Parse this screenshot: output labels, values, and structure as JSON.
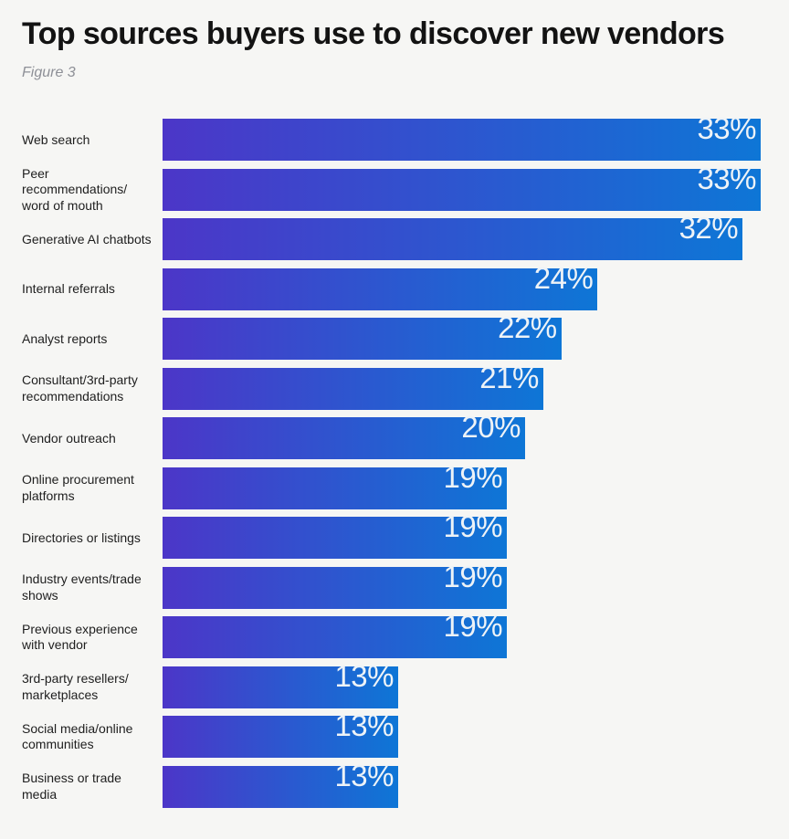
{
  "page": {
    "background_color": "#f6f6f4"
  },
  "header": {
    "title": "Top sources buyers use to discover new vendors",
    "figure_label": "Figure 3"
  },
  "chart_data": {
    "type": "bar",
    "orientation": "horizontal",
    "title": "Top sources buyers use to discover new vendors",
    "subtitle": "Figure 3",
    "grid": false,
    "legend": false,
    "axes_shown": false,
    "value_suffix": "%",
    "xlim": [
      0,
      33
    ],
    "axis_max_value": 33,
    "bar_color_gradient": {
      "left": "#4c36c8",
      "right": "#0e76d6"
    },
    "value_label_color": "#eef3f7",
    "categories": [
      "Web search",
      "Peer recommendations/\nword of mouth",
      "Generative AI chatbots",
      "Internal referrals",
      "Analyst reports",
      "Consultant/3rd-party\nrecommendations",
      "Vendor outreach",
      "Online procurement\nplatforms",
      "Directories or listings",
      "Industry events/trade\nshows",
      "Previous experience\nwith vendor",
      "3rd-party resellers/\nmarketplaces",
      "Social media/online\ncommunities",
      "Business or trade\nmedia"
    ],
    "values": [
      33,
      33,
      32,
      24,
      22,
      21,
      20,
      19,
      19,
      19,
      19,
      13,
      13,
      13
    ],
    "value_labels": [
      "33%",
      "33%",
      "32%",
      "24%",
      "22%",
      "21%",
      "20%",
      "19%",
      "19%",
      "19%",
      "19%",
      "13%",
      "13%",
      "13%"
    ]
  }
}
